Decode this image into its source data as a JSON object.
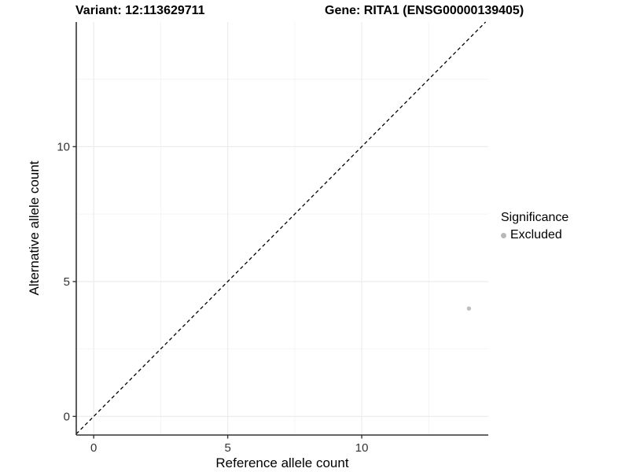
{
  "titles": {
    "variant": "Variant: 12:113629711",
    "gene": "Gene: RITA1 (ENSG00000139405)"
  },
  "chart_data": {
    "type": "scatter",
    "title": "Variant: 12:113629711 / Gene: RITA1 (ENSG00000139405)",
    "xlabel": "Reference allele count",
    "ylabel": "Alternative allele count",
    "xlim": [
      -0.65,
      14.72
    ],
    "ylim": [
      -0.69,
      14.62
    ],
    "x_ticks": [
      0,
      5,
      10
    ],
    "y_ticks": [
      0,
      5,
      10
    ],
    "x_minor_breaks": [
      2.5,
      7.5,
      12.5
    ],
    "y_minor_breaks": [
      2.5,
      7.5,
      12.5
    ],
    "grid": "major+minor",
    "identity_line": {
      "slope": 1,
      "intercept": 0,
      "style": "dashed",
      "color": "#000000"
    },
    "legend": {
      "position": "right",
      "title": "Significance",
      "items": [
        {
          "label": "Excluded",
          "color": "#b8b8b8"
        }
      ]
    },
    "series": [
      {
        "name": "Excluded",
        "color": "#bebebe",
        "points": [
          {
            "x": 14,
            "y": 4
          }
        ]
      }
    ],
    "colors": {
      "grid_major": "#ececec",
      "grid_minor": "#f4f4f4",
      "axis_line": "#333333",
      "tick_mark": "#333333",
      "tick_text": "#333333",
      "background": "#ffffff"
    }
  }
}
